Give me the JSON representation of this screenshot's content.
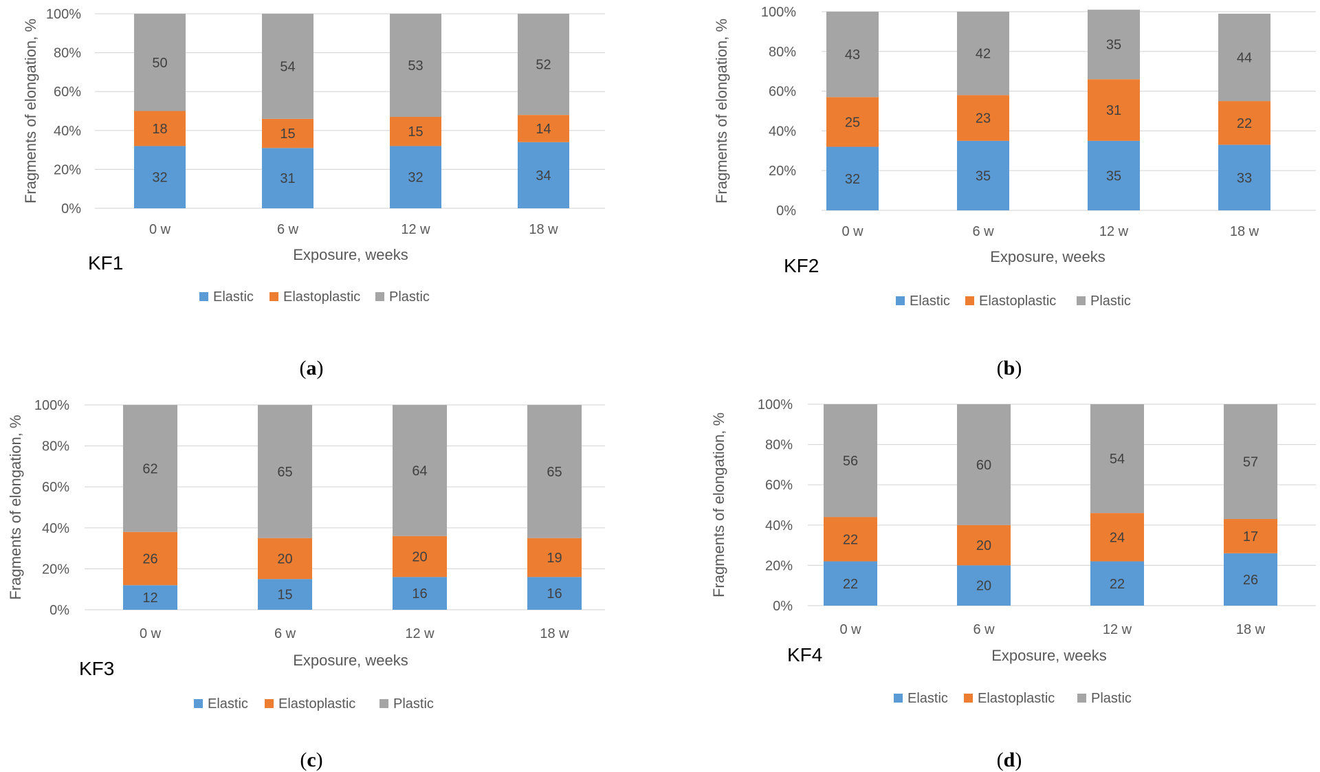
{
  "chart_data": [
    {
      "type": "bar",
      "stacked": true,
      "panel": "KF1",
      "caption": "a",
      "categories": [
        "0 w",
        "6 w",
        "12 w",
        "18 w"
      ],
      "series": [
        {
          "name": "Elastic",
          "color": "#5B9BD5",
          "values": [
            32,
            31,
            32,
            34
          ]
        },
        {
          "name": "Elastoplastic",
          "color": "#ED7D31",
          "values": [
            18,
            15,
            15,
            14
          ]
        },
        {
          "name": "Plastic",
          "color": "#A5A5A5",
          "values": [
            50,
            54,
            53,
            52
          ]
        }
      ],
      "xlabel": "Exposure, weeks",
      "ylabel": "Fragments of elongation, %",
      "yticks": [
        "0%",
        "20%",
        "40%",
        "60%",
        "80%",
        "100%"
      ],
      "ylim": [
        0,
        100
      ],
      "grid": true,
      "legend": "bottom"
    },
    {
      "type": "bar",
      "stacked": true,
      "panel": "KF2",
      "caption": "b",
      "categories": [
        "0 w",
        "6 w",
        "12 w",
        "18 w"
      ],
      "series": [
        {
          "name": "Elastic",
          "color": "#5B9BD5",
          "values": [
            32,
            35,
            35,
            33
          ]
        },
        {
          "name": "Elastoplastic",
          "color": "#ED7D31",
          "values": [
            25,
            23,
            31,
            22
          ]
        },
        {
          "name": "Plastic",
          "color": "#A5A5A5",
          "values": [
            43,
            42,
            35,
            44
          ]
        }
      ],
      "xlabel": "Exposure, weeks",
      "ylabel": "Fragments of elongation, %",
      "yticks": [
        "0%",
        "20%",
        "40%",
        "60%",
        "80%",
        "100%"
      ],
      "ylim": [
        0,
        100
      ],
      "grid": true,
      "legend": "bottom"
    },
    {
      "type": "bar",
      "stacked": true,
      "panel": "KF3",
      "caption": "c",
      "categories": [
        "0 w",
        "6 w",
        "12 w",
        "18 w"
      ],
      "series": [
        {
          "name": "Elastic",
          "color": "#5B9BD5",
          "values": [
            12,
            15,
            16,
            16
          ]
        },
        {
          "name": "Elastoplastic",
          "color": "#ED7D31",
          "values": [
            26,
            20,
            20,
            19
          ]
        },
        {
          "name": "Plastic",
          "color": "#A5A5A5",
          "values": [
            62,
            65,
            64,
            65
          ]
        }
      ],
      "xlabel": "Exposure, weeks",
      "ylabel": "Fragments of elongation, %",
      "yticks": [
        "0%",
        "20%",
        "40%",
        "60%",
        "80%",
        "100%"
      ],
      "ylim": [
        0,
        100
      ],
      "grid": true,
      "legend": "bottom"
    },
    {
      "type": "bar",
      "stacked": true,
      "panel": "KF4",
      "caption": "d",
      "categories": [
        "0 w",
        "6 w",
        "12 w",
        "18 w"
      ],
      "series": [
        {
          "name": "Elastic",
          "color": "#5B9BD5",
          "values": [
            22,
            20,
            22,
            26
          ]
        },
        {
          "name": "Elastoplastic",
          "color": "#ED7D31",
          "values": [
            22,
            20,
            24,
            17
          ]
        },
        {
          "name": "Plastic",
          "color": "#A5A5A5",
          "values": [
            56,
            60,
            54,
            57
          ]
        }
      ],
      "xlabel": "Exposure, weeks",
      "ylabel": "Fragments of elongation, %",
      "yticks": [
        "0%",
        "20%",
        "40%",
        "60%",
        "80%",
        "100%"
      ],
      "ylim": [
        0,
        100
      ],
      "grid": true,
      "legend": "bottom"
    }
  ]
}
